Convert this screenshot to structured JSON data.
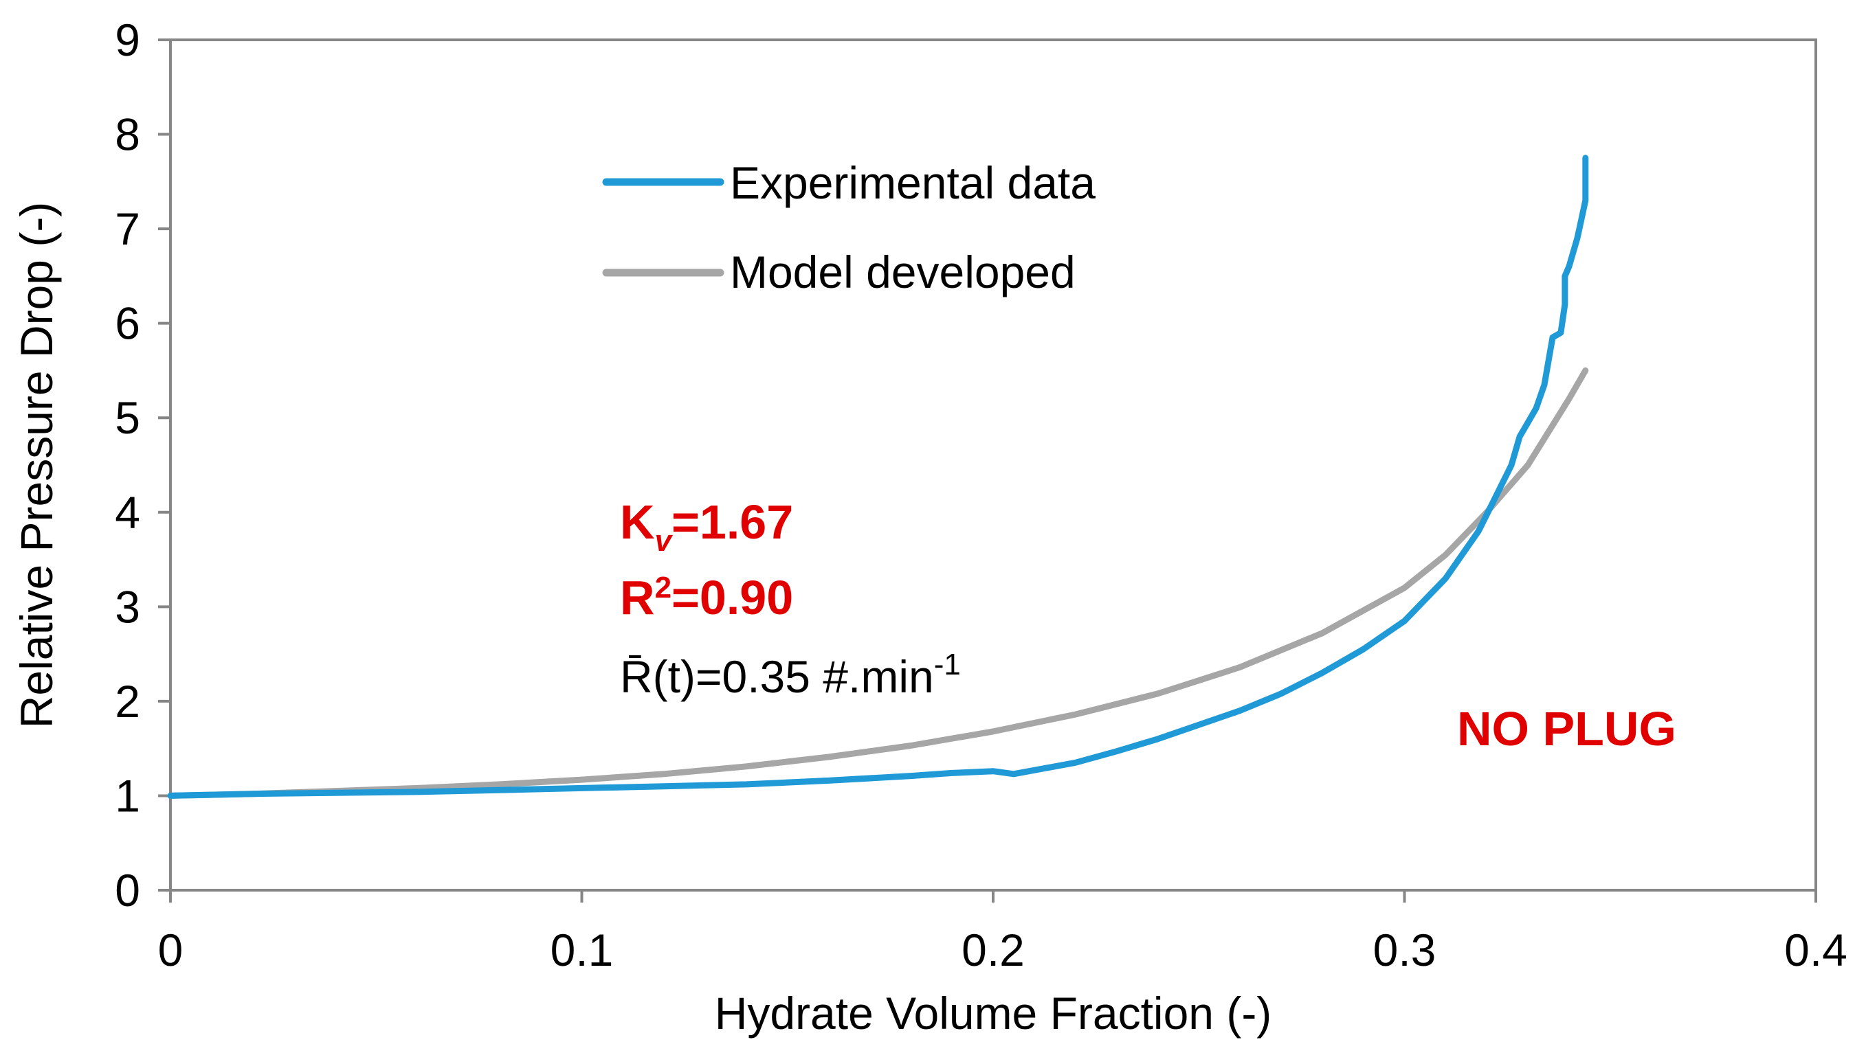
{
  "chart_data": {
    "type": "line",
    "title": "",
    "xlabel": "Hydrate Volume Fraction (-)",
    "ylabel": "Relative Pressure Drop (-)",
    "xlim": [
      0,
      0.4
    ],
    "ylim": [
      0,
      9
    ],
    "x_ticks": [
      "0",
      "0.1",
      "0.2",
      "0.3",
      "0.4"
    ],
    "y_ticks": [
      "0",
      "1",
      "2",
      "3",
      "4",
      "5",
      "6",
      "7",
      "8",
      "9"
    ],
    "x_tick_values": [
      0,
      0.1,
      0.2,
      0.3,
      0.4
    ],
    "y_tick_values": [
      0,
      1,
      2,
      3,
      4,
      5,
      6,
      7,
      8,
      9
    ],
    "grid": false,
    "legend_position": "top-center",
    "series": [
      {
        "name": "Experimental data",
        "color": "#1f9ad6",
        "x": [
          0,
          0.01,
          0.02,
          0.04,
          0.06,
          0.08,
          0.1,
          0.12,
          0.14,
          0.16,
          0.18,
          0.19,
          0.2,
          0.205,
          0.21,
          0.22,
          0.23,
          0.24,
          0.25,
          0.26,
          0.27,
          0.28,
          0.29,
          0.3,
          0.31,
          0.318,
          0.322,
          0.326,
          0.328,
          0.33,
          0.332,
          0.334,
          0.336,
          0.338,
          0.339,
          0.339,
          0.34,
          0.342,
          0.343,
          0.344,
          0.344,
          0.344
        ],
        "y": [
          1.0,
          1.01,
          1.02,
          1.03,
          1.04,
          1.06,
          1.08,
          1.1,
          1.12,
          1.16,
          1.21,
          1.24,
          1.26,
          1.23,
          1.27,
          1.35,
          1.47,
          1.6,
          1.75,
          1.9,
          2.08,
          2.3,
          2.55,
          2.85,
          3.3,
          3.8,
          4.15,
          4.5,
          4.8,
          4.95,
          5.1,
          5.35,
          5.85,
          5.9,
          6.2,
          6.5,
          6.6,
          6.9,
          7.1,
          7.3,
          7.6,
          7.75
        ]
      },
      {
        "name": "Model developed",
        "color": "#a6a6a6",
        "x": [
          0,
          0.02,
          0.04,
          0.06,
          0.08,
          0.1,
          0.12,
          0.14,
          0.16,
          0.18,
          0.2,
          0.22,
          0.24,
          0.26,
          0.28,
          0.3,
          0.31,
          0.32,
          0.33,
          0.34,
          0.344
        ],
        "y": [
          1.0,
          1.02,
          1.05,
          1.08,
          1.12,
          1.17,
          1.23,
          1.31,
          1.41,
          1.53,
          1.68,
          1.86,
          2.08,
          2.36,
          2.72,
          3.2,
          3.55,
          4.0,
          4.5,
          5.2,
          5.5
        ]
      }
    ],
    "annotations": {
      "kv_label": "K",
      "kv_sub": "v",
      "kv_value": "=1.67",
      "r2_label": "R",
      "r2_sup": "2",
      "r2_value": "=0.90",
      "rate_label": "R̄(t)=0.35 #.min",
      "rate_sup": "-1",
      "status": "NO PLUG"
    }
  }
}
